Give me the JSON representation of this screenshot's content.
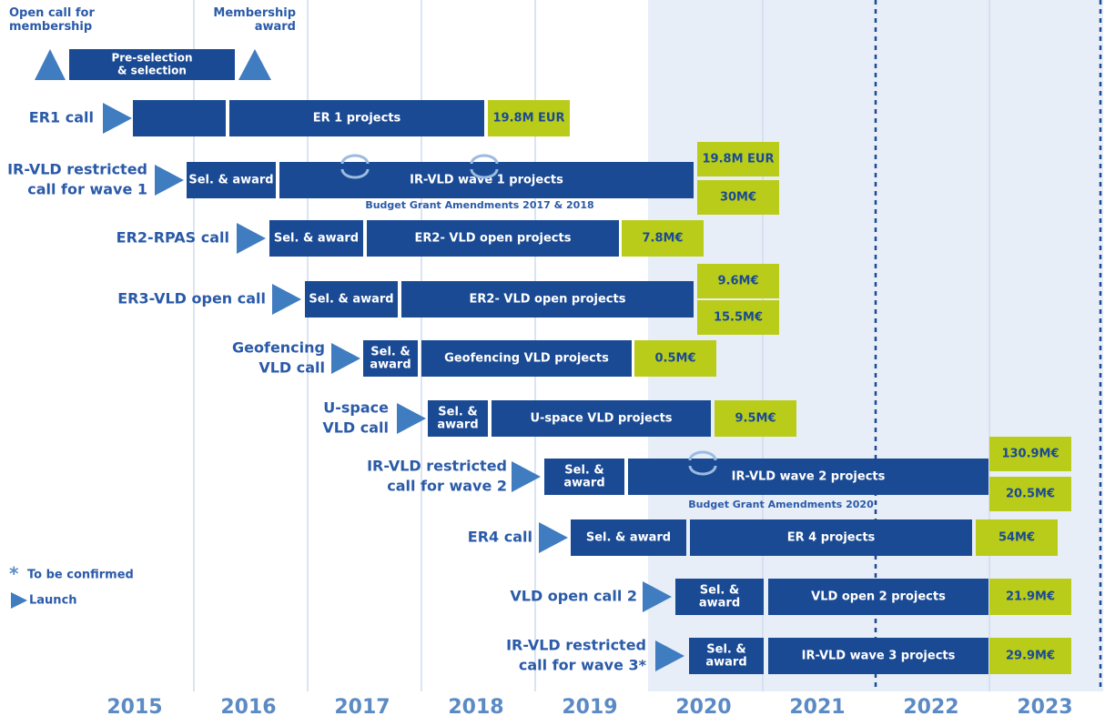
{
  "header": {
    "open_call": [
      "Open call for",
      "membership"
    ],
    "pre_selection": [
      "Pre-selection",
      "& selection"
    ],
    "membership_award": [
      "Membership",
      "award"
    ]
  },
  "rows": [
    {
      "call": [
        "ER1 call"
      ],
      "project": "ER 1 projects",
      "budgets": [
        "19.8M EUR"
      ]
    },
    {
      "call": [
        "IR-VLD restricted",
        "call for wave 1"
      ],
      "selection": [
        "Sel. & award"
      ],
      "project": "IR-VLD wave 1 projects",
      "budgets": [
        "19.8M EUR",
        "30M€"
      ],
      "note": "Budget Grant Amendments 2017 & 2018"
    },
    {
      "call": [
        "ER2-RPAS call"
      ],
      "selection": [
        "Sel. & award"
      ],
      "project": "ER2- VLD open projects",
      "budgets": [
        "7.8M€"
      ]
    },
    {
      "call": [
        "ER3-VLD open call"
      ],
      "selection": [
        "Sel. & award"
      ],
      "project": "ER2- VLD open projects",
      "budgets": [
        "9.6M€",
        "15.5M€"
      ]
    },
    {
      "call": [
        "Geofencing",
        "VLD call"
      ],
      "selection": [
        "Sel. &",
        "award"
      ],
      "project": "Geofencing VLD projects",
      "budgets": [
        "0.5M€"
      ]
    },
    {
      "call": [
        "U-space",
        "VLD call"
      ],
      "selection": [
        "Sel. &",
        "award"
      ],
      "project": "U-space VLD projects",
      "budgets": [
        "9.5M€"
      ]
    },
    {
      "call": [
        "IR-VLD restricted",
        "call for wave 2"
      ],
      "selection": [
        "Sel. &",
        "award"
      ],
      "project": "IR-VLD wave 2 projects",
      "budgets": [
        "130.9M€",
        "20.5M€"
      ],
      "note": "Budget Grant Amendments 2020"
    },
    {
      "call": [
        "ER4 call"
      ],
      "selection": [
        "Sel. & award"
      ],
      "project": "ER 4 projects",
      "budgets": [
        "54M€"
      ]
    },
    {
      "call": [
        "VLD open call 2"
      ],
      "selection": [
        "Sel. &",
        "award"
      ],
      "project": "VLD open 2 projects",
      "budgets": [
        "21.9M€"
      ]
    },
    {
      "call": [
        "IR-VLD restricted",
        "call for wave 3*"
      ],
      "selection": [
        "Sel. &",
        "award"
      ],
      "project": "IR-VLD wave 3 projects",
      "budgets": [
        "29.9M€"
      ]
    }
  ],
  "legend": {
    "confirm_mark": "*",
    "confirm": "To be confirmed",
    "launch": "Launch"
  },
  "years": [
    "2015",
    "2016",
    "2017",
    "2018",
    "2019",
    "2020",
    "2021",
    "2022",
    "2023"
  ]
}
